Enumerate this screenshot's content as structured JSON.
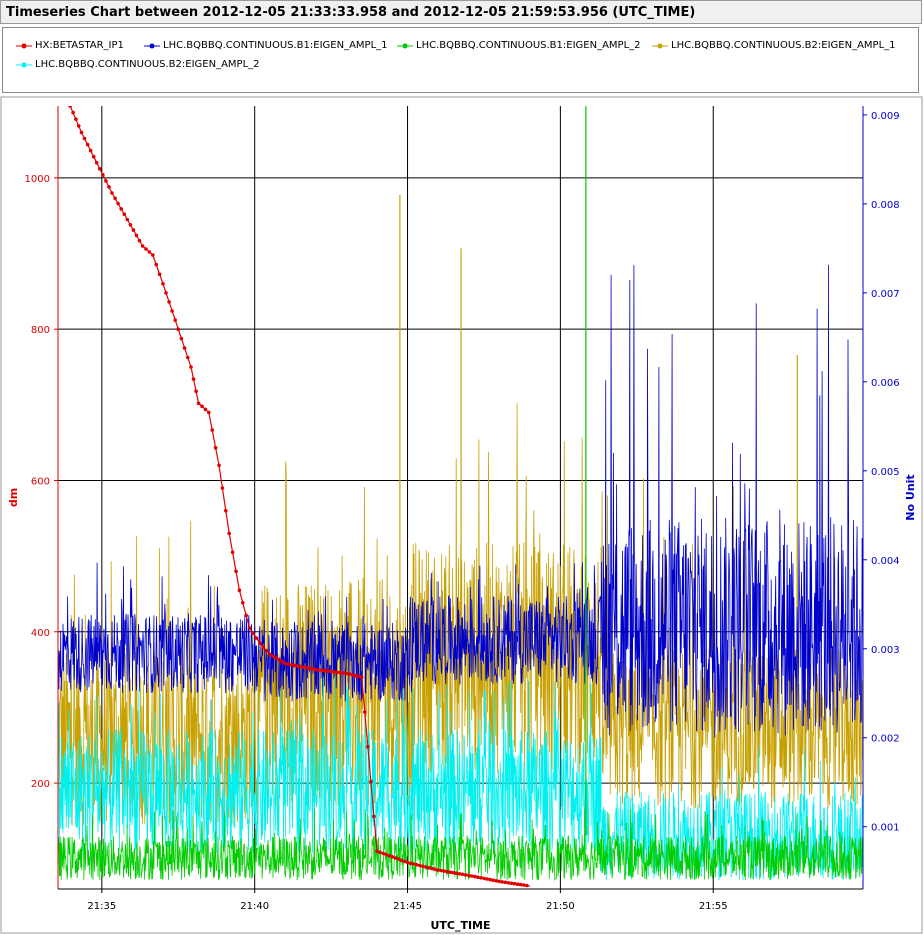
{
  "header": {
    "title": "Timeseries Chart between 2012-12-05 21:33:33.958 and 2012-12-05 21:59:53.956 (UTC_TIME)"
  },
  "legend": [
    {
      "label": "HX:BETASTAR_IP1",
      "color": "#e00000",
      "marker": "circle"
    },
    {
      "label": "LHC.BQBBQ.CONTINUOUS.B1:EIGEN_AMPL_1",
      "color": "#0000cc",
      "marker": "circle"
    },
    {
      "label": "LHC.BQBBQ.CONTINUOUS.B1:EIGEN_AMPL_2",
      "color": "#00cc00",
      "marker": "circle"
    },
    {
      "label": "LHC.BQBBQ.CONTINUOUS.B2:EIGEN_AMPL_1",
      "color": "#c8a000",
      "marker": "circle"
    },
    {
      "label": "LHC.BQBBQ.CONTINUOUS.B2:EIGEN_AMPL_2",
      "color": "#00f0f0",
      "marker": "circle"
    }
  ],
  "chart_data": {
    "type": "line",
    "title": "Timeseries Chart between 2012-12-05 21:33:33.958 and 2012-12-05 21:59:53.956 (UTC_TIME)",
    "xlabel": "UTC_TIME",
    "ylabel_left": "dm",
    "ylabel_right": "No Unit",
    "x_range": [
      "21:33:33.958",
      "21:59:53.956"
    ],
    "x_ticks": [
      "21:35",
      "21:40",
      "21:45",
      "21:50",
      "21:55"
    ],
    "ylim_left": [
      60,
      1095
    ],
    "yticks_left": [
      200,
      400,
      600,
      800,
      1000
    ],
    "ylim_right": [
      0.0003,
      0.0091
    ],
    "yticks_right": [
      "0.001",
      "0.002",
      "0.003",
      "0.004",
      "0.005",
      "0.006",
      "0.007",
      "0.008",
      "0.009"
    ],
    "grid": true,
    "legend_position": "top",
    "series": [
      {
        "name": "HX:BETASTAR_IP1",
        "axis": "left",
        "color": "#e00000",
        "x": [
          "21:33:58",
          "21:34:20",
          "21:34:50",
          "21:35:20",
          "21:35:50",
          "21:36:20",
          "21:36:40",
          "21:37:00",
          "21:37:30",
          "21:37:55",
          "21:38:10",
          "21:38:30",
          "21:38:50",
          "21:39:10",
          "21:39:30",
          "21:39:50",
          "21:40:10",
          "21:40:30",
          "21:41:00",
          "21:42:00",
          "21:43:00",
          "21:43:30",
          "21:44:00",
          "21:45:00",
          "21:46:00",
          "21:47:00",
          "21:48:00",
          "21:49:00"
        ],
        "values": [
          1095,
          1060,
          1020,
          980,
          945,
          910,
          898,
          860,
          800,
          750,
          702,
          690,
          620,
          530,
          455,
          405,
          385,
          370,
          358,
          350,
          345,
          340,
          110,
          95,
          85,
          78,
          70,
          64
        ]
      },
      {
        "name": "LHC.BQBBQ.CONTINUOUS.B1:EIGEN_AMPL_1",
        "axis": "right",
        "color": "#0000cc",
        "segments": [
          {
            "from": "21:33:34",
            "to": "21:40:10",
            "low": 0.0025,
            "high": 0.0034,
            "spike": 0.004
          },
          {
            "from": "21:40:10",
            "to": "21:45:10",
            "low": 0.0024,
            "high": 0.0033,
            "spike": 0.0036
          },
          {
            "from": "21:45:10",
            "to": "21:51:20",
            "low": 0.0026,
            "high": 0.0036,
            "spike": 0.004
          },
          {
            "from": "21:51:20",
            "to": "21:59:54",
            "low": 0.002,
            "high": 0.0045,
            "spike": 0.0074
          }
        ]
      },
      {
        "name": "LHC.BQBBQ.CONTINUOUS.B1:EIGEN_AMPL_2",
        "axis": "right",
        "color": "#00cc00",
        "segments": [
          {
            "from": "21:33:34",
            "to": "21:59:54",
            "low": 0.0004,
            "high": 0.0009,
            "spike": 0.0012
          }
        ],
        "spikes": [
          {
            "x": "21:50:50",
            "value": 0.0091
          }
        ]
      },
      {
        "name": "LHC.BQBBQ.CONTINUOUS.B2:EIGEN_AMPL_1",
        "axis": "right",
        "color": "#c8a000",
        "segments": [
          {
            "from": "21:33:34",
            "to": "21:40:10",
            "low": 0.001,
            "high": 0.003,
            "spike": 0.0045
          },
          {
            "from": "21:40:10",
            "to": "21:45:10",
            "low": 0.0012,
            "high": 0.0038,
            "spike": 0.0052
          },
          {
            "from": "21:45:10",
            "to": "21:51:20",
            "low": 0.0016,
            "high": 0.0042,
            "spike": 0.0058
          },
          {
            "from": "21:51:20",
            "to": "21:59:54",
            "low": 0.0012,
            "high": 0.003,
            "spike": 0.005
          }
        ],
        "spikes": [
          {
            "x": "21:44:45",
            "value": 0.0081
          },
          {
            "x": "21:46:45",
            "value": 0.0075
          },
          {
            "x": "21:57:45",
            "value": 0.0063
          }
        ]
      },
      {
        "name": "LHC.BQBBQ.CONTINUOUS.B2:EIGEN_AMPL_2",
        "axis": "right",
        "color": "#00f0f0",
        "segments": [
          {
            "from": "21:33:34",
            "to": "21:51:20",
            "low": 0.0007,
            "high": 0.0021,
            "spike": 0.0027
          },
          {
            "from": "21:51:20",
            "to": "21:59:54",
            "low": 0.0004,
            "high": 0.0014,
            "spike": 0.0019
          }
        ]
      }
    ]
  }
}
